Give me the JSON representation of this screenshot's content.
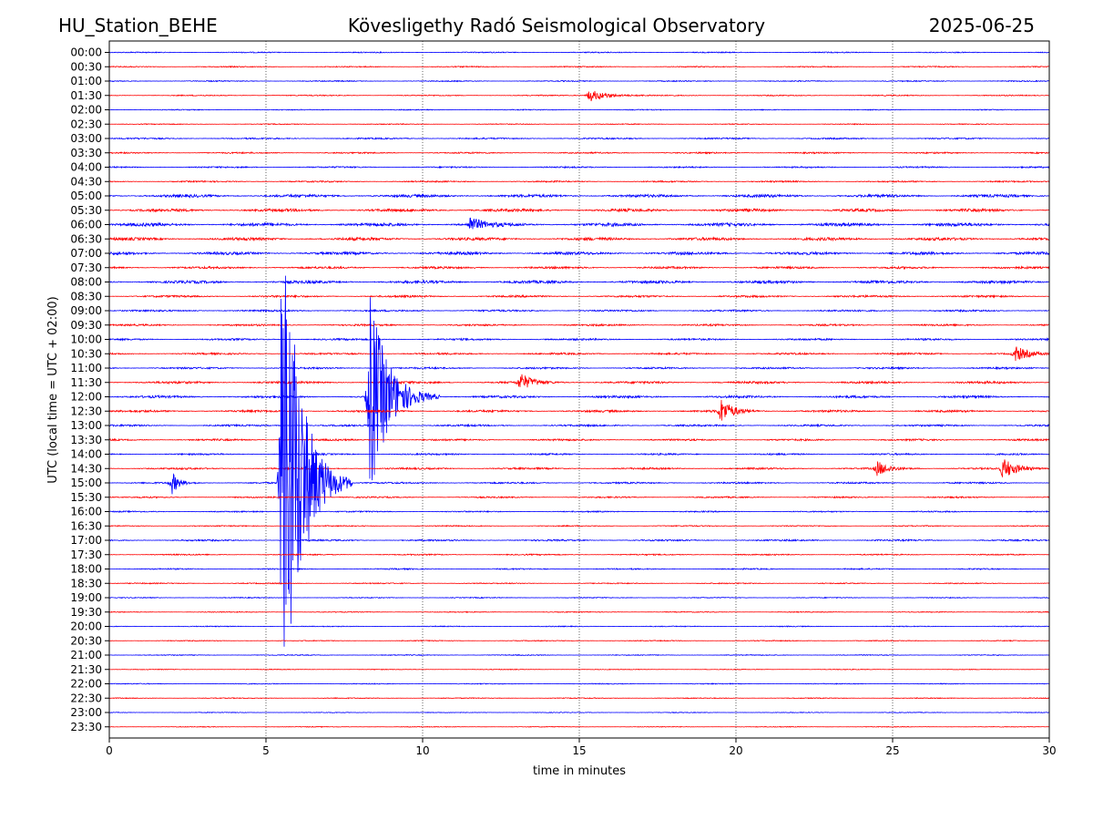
{
  "header": {
    "station": "HU_Station_BEHE",
    "observatory": "Kövesligethy Radó Seismological Observatory",
    "date": "2025-06-25"
  },
  "chart_data": {
    "type": "line",
    "title": "Kövesligethy Radó Seismological Observatory",
    "xlabel": "time in minutes",
    "ylabel": "UTC (local time = UTC + 02:00)",
    "xlim": [
      0,
      30
    ],
    "x_ticks": [
      "0",
      "5",
      "10",
      "15",
      "20",
      "25",
      "30"
    ],
    "x_tick_values": [
      0,
      5,
      10,
      15,
      20,
      25,
      30
    ],
    "grid": "vertical dotted at x ticks",
    "trace_colors": [
      "#0000ff",
      "#ff0000"
    ],
    "rows": [
      "00:00",
      "00:30",
      "01:00",
      "01:30",
      "02:00",
      "02:30",
      "03:00",
      "03:30",
      "04:00",
      "04:30",
      "05:00",
      "05:30",
      "06:00",
      "06:30",
      "07:00",
      "07:30",
      "08:00",
      "08:30",
      "09:00",
      "09:30",
      "10:00",
      "10:30",
      "11:00",
      "11:30",
      "12:00",
      "12:30",
      "13:00",
      "13:30",
      "14:00",
      "14:30",
      "15:00",
      "15:30",
      "16:00",
      "16:30",
      "17:00",
      "17:30",
      "18:00",
      "18:30",
      "19:00",
      "19:30",
      "20:00",
      "20:30",
      "21:00",
      "21:30",
      "22:00",
      "22:30",
      "23:00",
      "23:30"
    ],
    "noise_levels": [
      0.6,
      0.6,
      0.6,
      0.6,
      0.5,
      0.5,
      0.8,
      0.8,
      0.8,
      0.8,
      1.6,
      1.6,
      1.8,
      1.6,
      1.6,
      1.2,
      1.6,
      1.1,
      1.0,
      1.0,
      1.0,
      1.0,
      1.0,
      1.3,
      1.3,
      1.2,
      1.0,
      1.0,
      0.9,
      1.0,
      0.9,
      0.8,
      0.7,
      0.6,
      0.9,
      0.7,
      0.7,
      0.6,
      0.5,
      0.5,
      0.5,
      0.5,
      0.5,
      0.4,
      0.5,
      0.5,
      0.4,
      0.4
    ],
    "events": [
      {
        "row": "01:30",
        "minute": 15.3,
        "amplitude": 7,
        "duration_min": 1.5
      },
      {
        "row": "06:00",
        "minute": 11.5,
        "amplitude": 9,
        "duration_min": 1.0
      },
      {
        "row": "10:30",
        "minute": 28.9,
        "amplitude": 9,
        "duration_min": 1.0
      },
      {
        "row": "11:30",
        "minute": 13.1,
        "amplitude": 10,
        "duration_min": 1.0
      },
      {
        "row": "12:00",
        "minute": 8.3,
        "amplitude": 120,
        "duration_min": 1.5
      },
      {
        "row": "12:30",
        "minute": 19.5,
        "amplitude": 14,
        "duration_min": 1.0
      },
      {
        "row": "14:30",
        "minute": 28.5,
        "amplitude": 12,
        "duration_min": 1.2
      },
      {
        "row": "14:30",
        "minute": 24.5,
        "amplitude": 8,
        "duration_min": 1.0
      },
      {
        "row": "15:00",
        "minute": 5.5,
        "amplitude": 340,
        "duration_min": 1.5
      },
      {
        "row": "15:00",
        "minute": 2.0,
        "amplitude": 12,
        "duration_min": 0.6
      }
    ]
  }
}
